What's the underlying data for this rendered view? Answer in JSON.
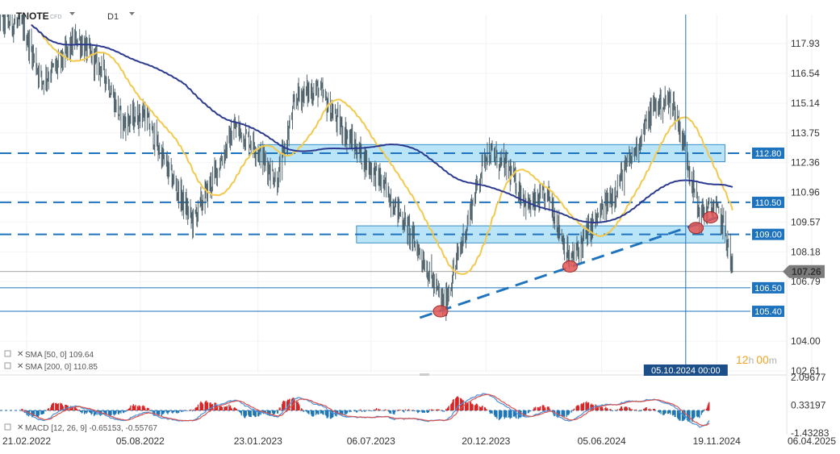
{
  "header": {
    "symbol": "TNOTE",
    "badge": "CFD",
    "timeframe": "D1"
  },
  "chart_data": {
    "type": "candlestick",
    "instrument": "TNOTE",
    "timeframe": "D1",
    "y_ticks": [
      "117.93",
      "116.54",
      "115.14",
      "113.75",
      "112.36",
      "110.96",
      "109.57",
      "108.18",
      "106.79",
      "104.00",
      "102.61"
    ],
    "ylim": [
      102.61,
      117.93
    ],
    "x_ticks": [
      "21.02.2022",
      "05.08.2022",
      "23.01.2023",
      "06.07.2023",
      "20.12.2023",
      "05.06.2024",
      "19.11.2024",
      "06.04.2025"
    ],
    "last_price": "107.26",
    "horizontal_levels": [
      {
        "label": "112.80",
        "value": 112.8,
        "style": "dashed"
      },
      {
        "label": "110.50",
        "value": 110.5,
        "style": "dashed"
      },
      {
        "label": "109.00",
        "value": 109.0,
        "style": "dashed"
      },
      {
        "label": "106.50",
        "value": 106.5,
        "style": "solid"
      },
      {
        "label": "105.40",
        "value": 105.4,
        "style": "solid"
      }
    ],
    "zones": [
      {
        "from_date": "2023-01-23",
        "to_date": "2024-12-01",
        "low": 112.4,
        "high": 113.2
      },
      {
        "from_date": "2023-06-15",
        "to_date": "2024-12-01",
        "low": 108.6,
        "high": 109.4
      }
    ],
    "trendline": {
      "from": {
        "date": "2023-09-15",
        "value": 105.1
      },
      "to": {
        "date": "2024-11-20",
        "value": 109.8
      }
    },
    "markers": [
      {
        "date": "2023-10-15",
        "value": 105.4
      },
      {
        "date": "2024-04-20",
        "value": 107.5
      },
      {
        "date": "2024-10-20",
        "value": 109.3
      },
      {
        "date": "2024-11-10",
        "value": 109.8
      }
    ],
    "crosshair": {
      "label": "05.10.2024 00:00"
    },
    "price_series": [
      {
        "date": "2022-01-01",
        "value": 119.0
      },
      {
        "date": "2022-02-15",
        "value": 118.8
      },
      {
        "date": "2022-03-15",
        "value": 116.2
      },
      {
        "date": "2022-04-10",
        "value": 117.0
      },
      {
        "date": "2022-05-05",
        "value": 118.2
      },
      {
        "date": "2022-06-15",
        "value": 116.5
      },
      {
        "date": "2022-07-10",
        "value": 114.2
      },
      {
        "date": "2022-08-10",
        "value": 114.7
      },
      {
        "date": "2022-09-10",
        "value": 112.3
      },
      {
        "date": "2022-10-20",
        "value": 109.6
      },
      {
        "date": "2022-11-20",
        "value": 111.7
      },
      {
        "date": "2022-12-20",
        "value": 114.0
      },
      {
        "date": "2023-01-15",
        "value": 113.3
      },
      {
        "date": "2023-02-20",
        "value": 111.5
      },
      {
        "date": "2023-03-20",
        "value": 115.5
      },
      {
        "date": "2023-04-20",
        "value": 115.8
      },
      {
        "date": "2023-05-20",
        "value": 114.2
      },
      {
        "date": "2023-06-20",
        "value": 112.8
      },
      {
        "date": "2023-07-20",
        "value": 111.5
      },
      {
        "date": "2023-08-20",
        "value": 109.8
      },
      {
        "date": "2023-09-20",
        "value": 107.8
      },
      {
        "date": "2023-10-20",
        "value": 105.6
      },
      {
        "date": "2023-11-20",
        "value": 109.2
      },
      {
        "date": "2023-12-20",
        "value": 112.9
      },
      {
        "date": "2024-01-20",
        "value": 112.1
      },
      {
        "date": "2024-02-20",
        "value": 110.3
      },
      {
        "date": "2024-03-20",
        "value": 110.8
      },
      {
        "date": "2024-04-20",
        "value": 107.7
      },
      {
        "date": "2024-05-20",
        "value": 109.3
      },
      {
        "date": "2024-06-20",
        "value": 110.8
      },
      {
        "date": "2024-07-20",
        "value": 112.7
      },
      {
        "date": "2024-08-20",
        "value": 115.0
      },
      {
        "date": "2024-09-15",
        "value": 115.3
      },
      {
        "date": "2024-10-05",
        "value": 112.9
      },
      {
        "date": "2024-10-25",
        "value": 109.9
      },
      {
        "date": "2024-11-15",
        "value": 110.3
      },
      {
        "date": "2024-11-30",
        "value": 109.4
      },
      {
        "date": "2024-12-12",
        "value": 107.26
      }
    ],
    "indicators": [
      {
        "label": "SMA [50, 0] 109.64",
        "color": "#f2c94c"
      },
      {
        "label": "SMA [200, 0] 110.85",
        "color": "#2b3a8f"
      }
    ],
    "timer": {
      "hours": "12",
      "h_unit": "h",
      "minutes": "00",
      "m_unit": "m"
    },
    "macd": {
      "label": "MACD [12, 26, 9] -0.65153, -0.55767",
      "y_ticks": [
        "2.09677",
        "0.33197",
        "-1.43283"
      ],
      "ylim": [
        -1.43283,
        2.09677
      ]
    },
    "colors": {
      "candles": "#455a64",
      "sma50": "#f2c94c",
      "sma200": "#2b3a8f",
      "levels": "#1e73be",
      "zone_fill": "#aee0f7",
      "marker": "#e05555",
      "macd_pos": "#d62728",
      "macd_neg": "#1f77b4"
    }
  }
}
